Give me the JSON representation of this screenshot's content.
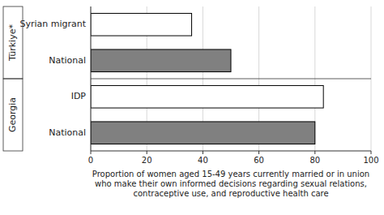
{
  "chart_data": {
    "type": "bar",
    "orientation": "horizontal",
    "categories": [
      "Syrian migrant",
      "National",
      "IDP",
      "National"
    ],
    "category_groups": [
      "Türkiye*",
      "Türkiye*",
      "Georgia",
      "Georgia"
    ],
    "values": [
      36,
      50,
      83,
      80
    ],
    "colors": [
      "#ffffff",
      "#808080",
      "#ffffff",
      "#808080"
    ],
    "xlim": [
      0,
      100
    ],
    "xticks": [
      0,
      20,
      40,
      60,
      80,
      100
    ],
    "grid": true,
    "xlabel": [
      "Proportion of women aged 15-49 years currently married or in union",
      "who make their own informed decisions regarding sexual relations,",
      "contraceptive use, and reproductive health care"
    ]
  }
}
